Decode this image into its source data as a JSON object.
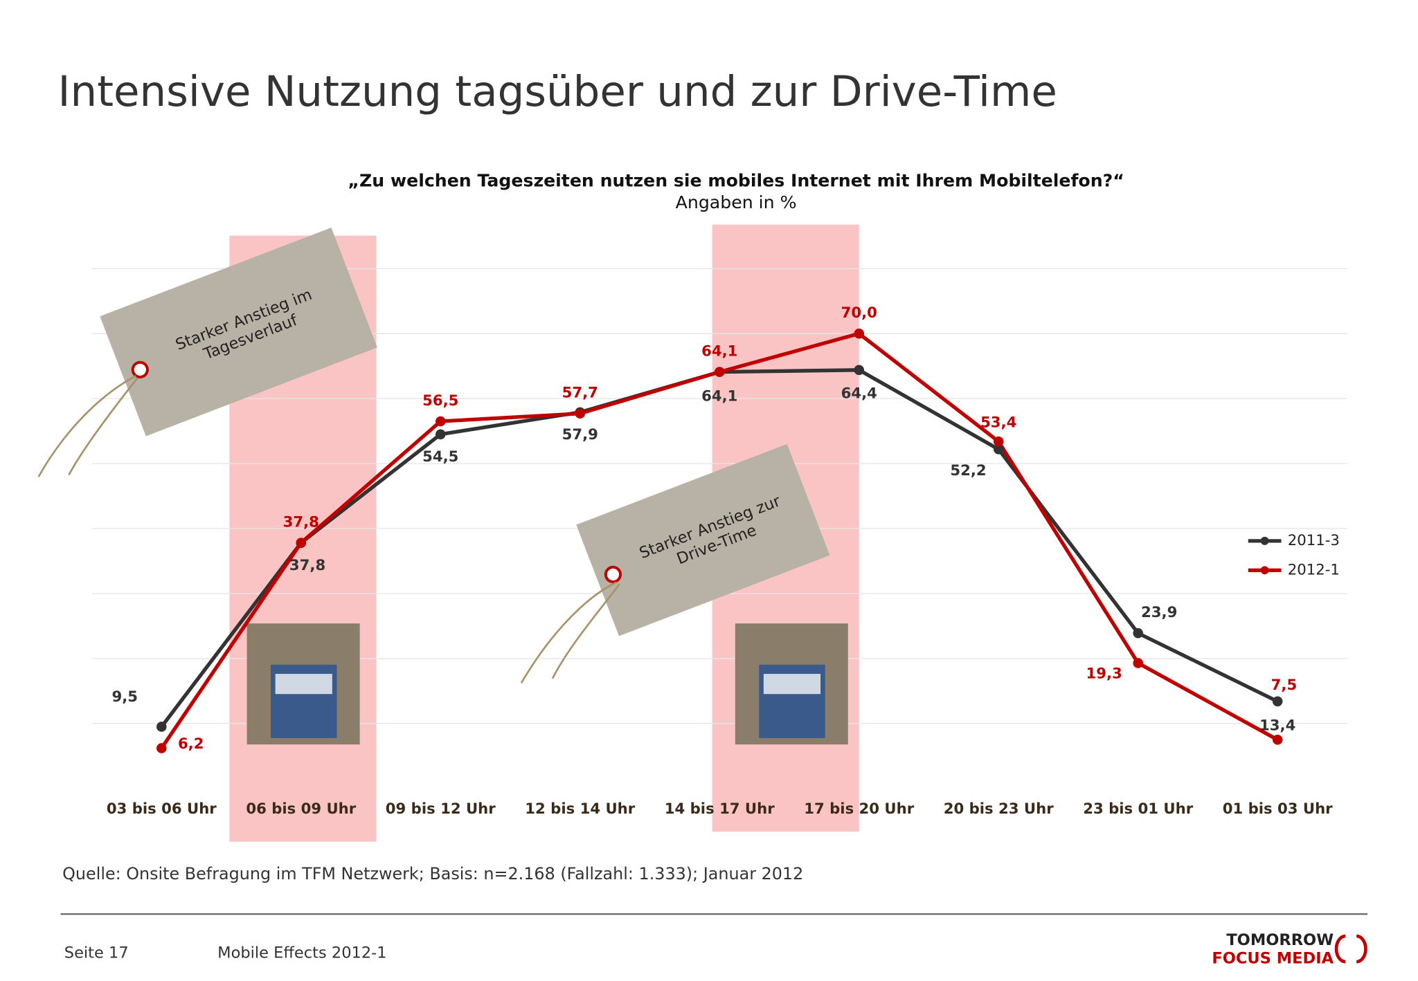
{
  "title": "Intensive Nutzung tagsüber und zur Drive-Time",
  "chart_data": {
    "type": "line",
    "title": "„Zu welchen Tageszeiten nutzen sie mobiles Internet mit Ihrem Mobiltelefon?“",
    "subtitle": "Angaben in %",
    "categories": [
      "03 bis 06 Uhr",
      "06 bis 09 Uhr",
      "09 bis 12 Uhr",
      "12 bis 14 Uhr",
      "14 bis 17 Uhr",
      "17 bis 20 Uhr",
      "20 bis 23 Uhr",
      "23 bis 01 Uhr",
      "01 bis 03 Uhr"
    ],
    "series": [
      {
        "name": "2011-3",
        "color": "#333333",
        "values": [
          9.5,
          37.8,
          54.5,
          57.9,
          64.1,
          64.4,
          52.2,
          23.9,
          13.4
        ],
        "value_labels": [
          "9,5",
          "37,8",
          "54,5",
          "57,9",
          "64,1",
          "64,4",
          "52,2",
          "23,9",
          "13,4"
        ]
      },
      {
        "name": "2012-1",
        "color": "#c00000",
        "values": [
          6.2,
          37.8,
          56.5,
          57.7,
          64.1,
          70.0,
          53.4,
          19.3,
          7.5
        ],
        "value_labels": [
          "6,2",
          "37,8",
          "56,5",
          "57,7",
          "64,1",
          "70,0",
          "53,4",
          "19,3",
          "7,5"
        ]
      }
    ],
    "ylim": [
      0,
      80
    ],
    "yticks": [
      10,
      20,
      30,
      40,
      50,
      60,
      70,
      80
    ],
    "grid": true,
    "legend": "right",
    "annotations": [
      {
        "lines": [
          "Starker Anstieg im",
          "Tagesverlauf"
        ]
      },
      {
        "lines": [
          "Starker Anstieg zur",
          "Drive-Time"
        ]
      }
    ]
  },
  "source": "Quelle: Onsite Befragung im TFM Netzwerk; Basis: n=2.168 (Fallzahl: 1.333); Januar 2012",
  "footer": {
    "page": "Seite 17",
    "report": "Mobile Effects 2012-1",
    "logo": [
      "TOMORROW",
      "FOCUS MEDIA"
    ]
  }
}
